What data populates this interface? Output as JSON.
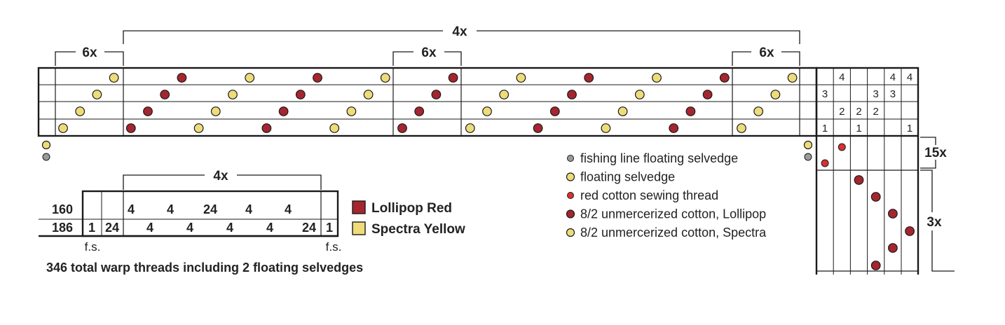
{
  "colors": {
    "red": "#a5262e",
    "yellow": "#eedc7a",
    "gray": "#9a9a9a",
    "thread_red": "#d93030",
    "line": "#1a1a1a"
  },
  "threading": {
    "repeat_top": "4x",
    "repeat_left": "6x",
    "repeat_mid": "6x",
    "repeat_right": "6x",
    "grid_rows": 4,
    "cols": [
      {
        "shaft": 1,
        "color": "yellow"
      },
      {
        "shaft": 2,
        "color": "yellow"
      },
      {
        "shaft": 3,
        "color": "yellow"
      },
      {
        "shaft": 4,
        "color": "yellow"
      },
      {
        "shaft": 1,
        "color": "red"
      },
      {
        "shaft": 2,
        "color": "red"
      },
      {
        "shaft": 3,
        "color": "red"
      },
      {
        "shaft": 4,
        "color": "red"
      },
      {
        "shaft": 1,
        "color": "yellow"
      },
      {
        "shaft": 2,
        "color": "yellow"
      },
      {
        "shaft": 3,
        "color": "yellow"
      },
      {
        "shaft": 4,
        "color": "yellow"
      },
      {
        "shaft": 1,
        "color": "red"
      },
      {
        "shaft": 2,
        "color": "red"
      },
      {
        "shaft": 3,
        "color": "red"
      },
      {
        "shaft": 4,
        "color": "red"
      },
      {
        "shaft": 1,
        "color": "yellow"
      },
      {
        "shaft": 2,
        "color": "yellow"
      },
      {
        "shaft": 3,
        "color": "yellow"
      },
      {
        "shaft": 4,
        "color": "yellow"
      },
      {
        "shaft": 1,
        "color": "red"
      },
      {
        "shaft": 2,
        "color": "red"
      },
      {
        "shaft": 3,
        "color": "red"
      },
      {
        "shaft": 4,
        "color": "red"
      },
      {
        "shaft": 1,
        "color": "yellow"
      },
      {
        "shaft": 2,
        "color": "yellow"
      },
      {
        "shaft": 3,
        "color": "yellow"
      },
      {
        "shaft": 4,
        "color": "yellow"
      },
      {
        "shaft": 1,
        "color": "red"
      },
      {
        "shaft": 2,
        "color": "red"
      },
      {
        "shaft": 3,
        "color": "red"
      },
      {
        "shaft": 4,
        "color": "red"
      },
      {
        "shaft": 1,
        "color": "yellow"
      },
      {
        "shaft": 2,
        "color": "yellow"
      },
      {
        "shaft": 3,
        "color": "yellow"
      },
      {
        "shaft": 4,
        "color": "yellow"
      },
      {
        "shaft": 1,
        "color": "red"
      },
      {
        "shaft": 2,
        "color": "red"
      },
      {
        "shaft": 3,
        "color": "red"
      },
      {
        "shaft": 4,
        "color": "red"
      },
      {
        "shaft": 1,
        "color": "yellow"
      },
      {
        "shaft": 2,
        "color": "yellow"
      },
      {
        "shaft": 3,
        "color": "yellow"
      },
      {
        "shaft": 4,
        "color": "yellow"
      }
    ],
    "floating_selvedges": [
      [
        "yellow",
        "gray"
      ],
      [
        "yellow",
        "gray"
      ]
    ]
  },
  "tieup": {
    "cells": [
      [
        "",
        "4",
        "",
        "",
        "4",
        "4"
      ],
      [
        "3",
        "",
        "",
        "3",
        "3",
        ""
      ],
      [
        "",
        "2",
        "2",
        "2",
        "",
        ""
      ],
      [
        "1",
        "",
        "1",
        "",
        "",
        "1"
      ]
    ]
  },
  "treadling": {
    "repeat_a": "15x",
    "repeat_b": "3x",
    "picks": [
      {
        "treadle": 1,
        "color": "thread_red"
      },
      {
        "treadle": 2,
        "color": "thread_red"
      },
      {
        "treadle": 3,
        "color": "red"
      },
      {
        "treadle": 4,
        "color": "red"
      },
      {
        "treadle": 5,
        "color": "red"
      },
      {
        "treadle": 6,
        "color": "red"
      },
      {
        "treadle": 5,
        "color": "red"
      },
      {
        "treadle": 4,
        "color": "red"
      }
    ]
  },
  "legend": [
    {
      "color": "gray",
      "label": "fishing line floating selvedge"
    },
    {
      "color": "yellow",
      "label": "floating selvedge"
    },
    {
      "color": "thread_red",
      "label": "red cotton sewing thread"
    },
    {
      "color": "red",
      "label": "8/2 unmercerized cotton, Lollipop"
    },
    {
      "color": "yellow",
      "label": "8/2 unmercerized cotton, Spectra"
    }
  ],
  "warp_table": {
    "repeat_label": "4x",
    "row1_total": "160",
    "row2_total": "186",
    "row1_values": [
      "4",
      "4",
      "24",
      "4",
      "4"
    ],
    "row2_left": [
      "1",
      "24"
    ],
    "row2_values": [
      "4",
      "4",
      "4",
      "4",
      "24"
    ],
    "row2_right": "1",
    "fs_left": "f.s.",
    "fs_right": "f.s.",
    "caption": "346 total warp threads including 2 floating selvedges"
  },
  "color_key": [
    {
      "color": "red",
      "label": "Lollipop Red"
    },
    {
      "color": "yellow",
      "label": "Spectra Yellow"
    }
  ]
}
